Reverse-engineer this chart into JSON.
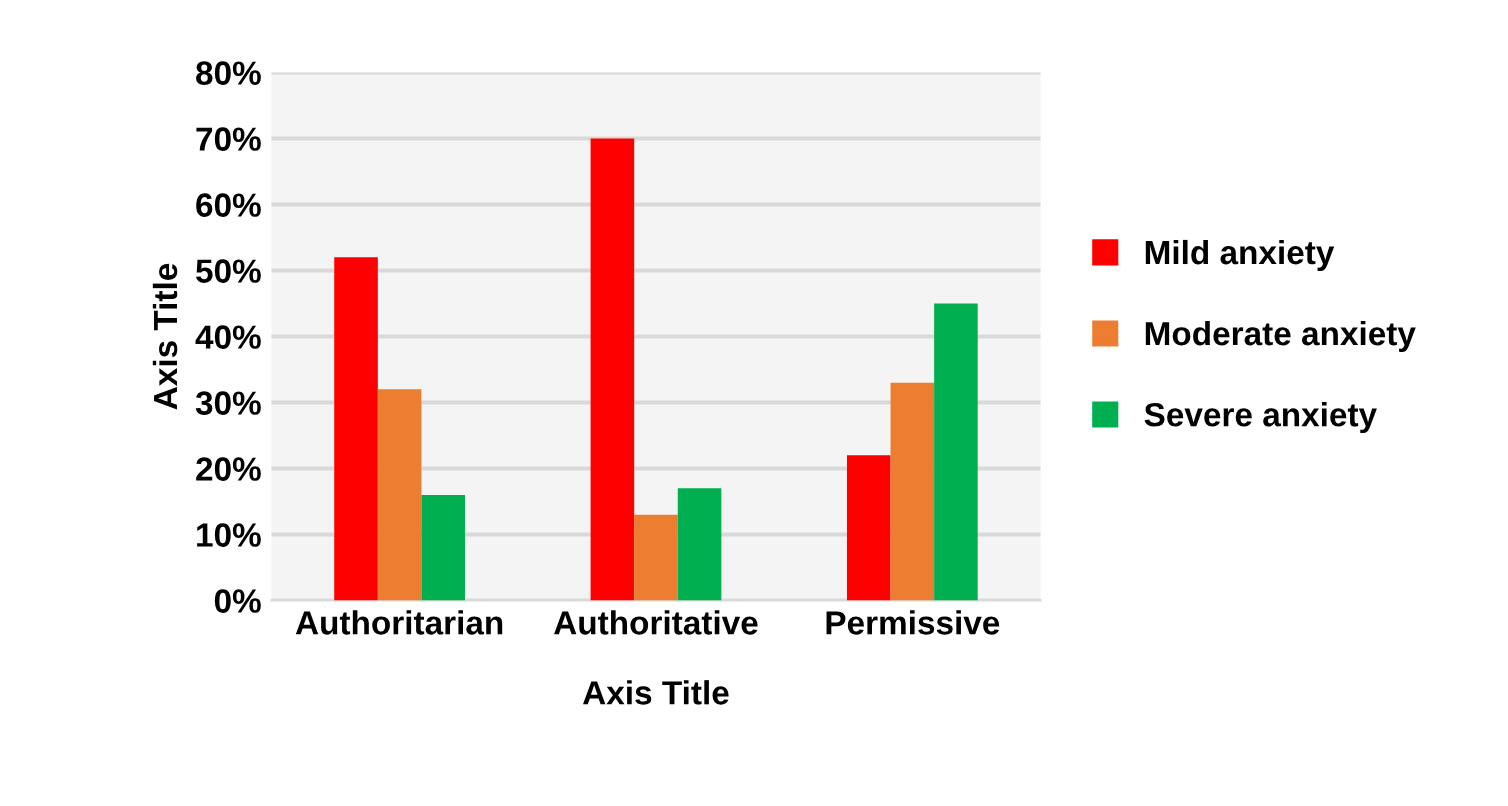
{
  "chart_data": {
    "type": "bar",
    "xlabel": "Axis Title",
    "ylabel": "Axis Title",
    "categories": [
      "Authoritarian",
      "Authoritative",
      "Permissive"
    ],
    "series": [
      {
        "name": "Mild anxiety",
        "color": "#ff0000",
        "values": [
          52,
          70,
          22
        ]
      },
      {
        "name": "Moderate anxiety",
        "color": "#ed7d31",
        "values": [
          32,
          13,
          33
        ]
      },
      {
        "name": "Severe anxiety",
        "color": "#00b050",
        "values": [
          16,
          17,
          45
        ]
      }
    ],
    "ylim": [
      0,
      80
    ],
    "yticks": [
      {
        "value": 0,
        "label": "0%"
      },
      {
        "value": 10,
        "label": "10%"
      },
      {
        "value": 20,
        "label": "20%"
      },
      {
        "value": 30,
        "label": "30%"
      },
      {
        "value": 40,
        "label": "40%"
      },
      {
        "value": 50,
        "label": "50%"
      },
      {
        "value": 60,
        "label": "60%"
      },
      {
        "value": 70,
        "label": "70%"
      },
      {
        "value": 80,
        "label": "80%"
      }
    ],
    "grid": "y",
    "legend": "right"
  }
}
